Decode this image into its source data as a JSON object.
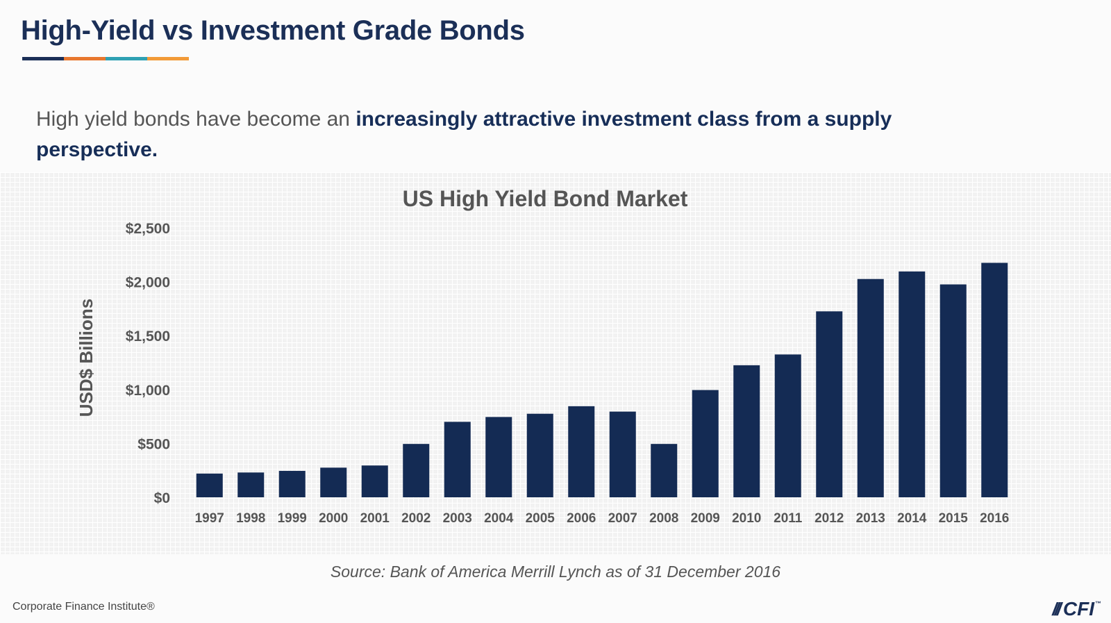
{
  "slide": {
    "title": "High-Yield vs Investment Grade Bonds",
    "accent_colors": [
      "#1b2f57",
      "#e8772e",
      "#2fa1b3",
      "#f29a38"
    ],
    "subtitle_plain": "High yield bonds have become an ",
    "subtitle_emphasis": "increasingly attractive investment class from a supply perspective.",
    "source": "Source: Bank of America Merrill Lynch as of 31 December 2016",
    "footer": "Corporate Finance Institute®",
    "logo": {
      "mark": "///",
      "text": "CFI",
      "tm": "™"
    }
  },
  "chart_data": {
    "type": "bar",
    "title": "US High Yield Bond Market",
    "xlabel": "",
    "ylabel": "USD$ Billions",
    "categories": [
      "1997",
      "1998",
      "1999",
      "2000",
      "2001",
      "2002",
      "2003",
      "2004",
      "2005",
      "2006",
      "2007",
      "2008",
      "2009",
      "2010",
      "2011",
      "2012",
      "2013",
      "2014",
      "2015",
      "2016"
    ],
    "values": [
      220,
      230,
      245,
      275,
      295,
      495,
      700,
      745,
      775,
      845,
      795,
      495,
      995,
      1225,
      1325,
      1725,
      2025,
      2095,
      1975,
      2175
    ],
    "ylim": [
      0,
      2500
    ],
    "yticks": [
      0,
      500,
      1000,
      1500,
      2000,
      2500
    ],
    "ytick_labels": [
      "$0",
      "$500",
      "$1,000",
      "$1,500",
      "$2,000",
      "$2,500"
    ],
    "bar_color": "#142b54",
    "grid": false,
    "legend": "none"
  }
}
